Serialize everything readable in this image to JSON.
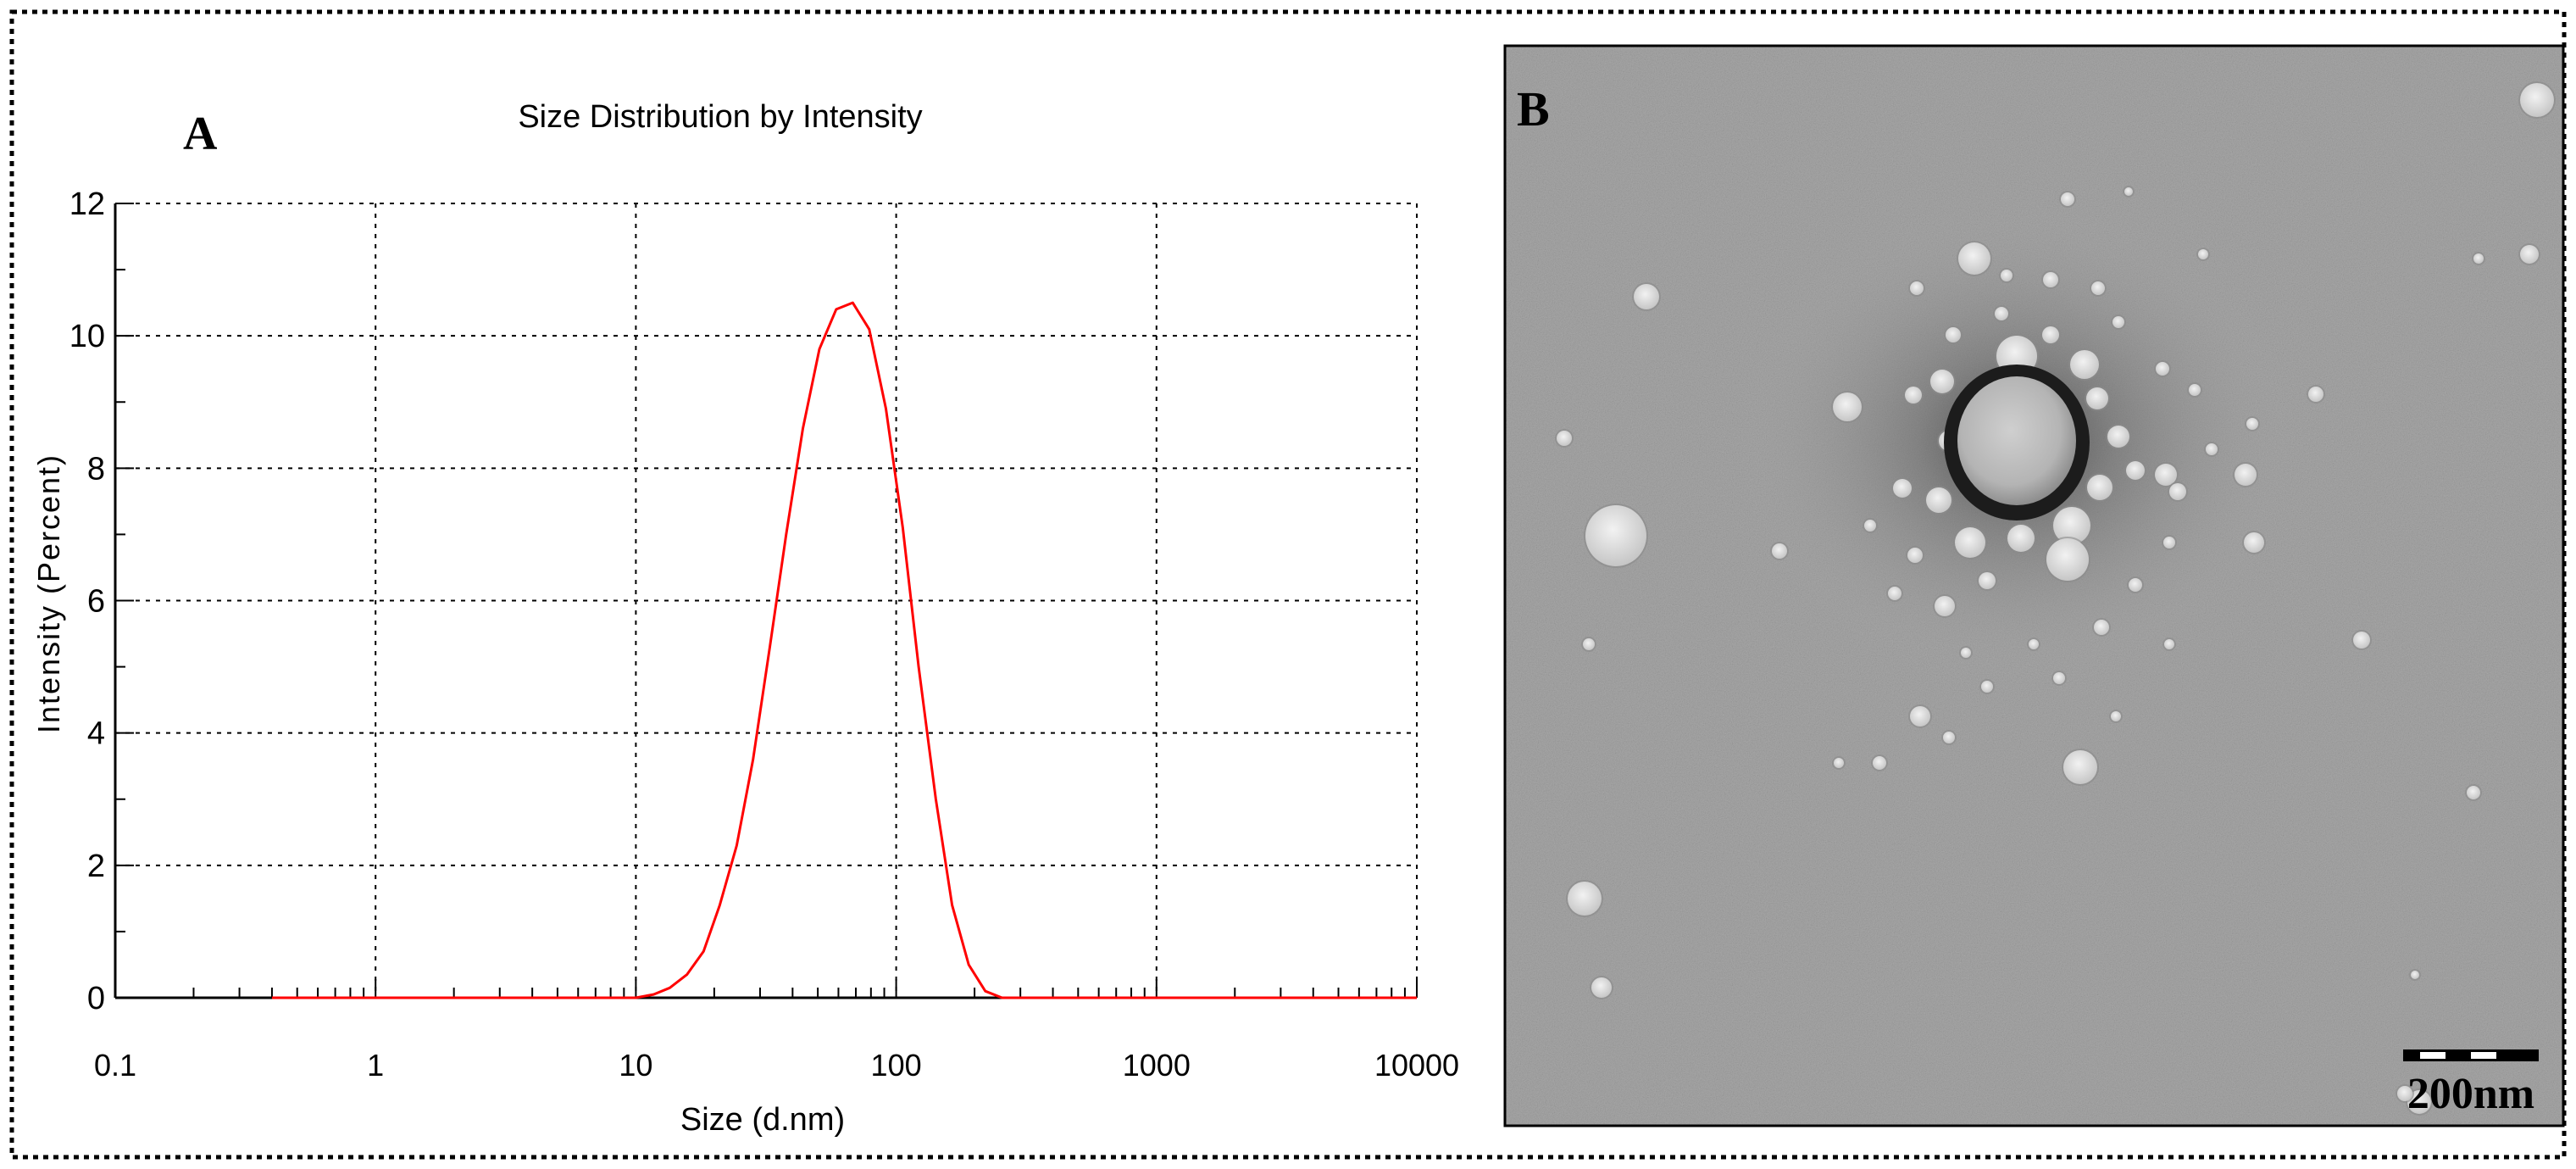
{
  "panel_a": {
    "label": "A"
  },
  "panel_b": {
    "label": "B",
    "scale_bar_label": "200nm",
    "image_description_icon": "tem-micrograph"
  },
  "chart_data": {
    "type": "line",
    "title": "Size Distribution by Intensity",
    "xlabel": "Size (d.nm)",
    "ylabel": "Intensity (Percent)",
    "x_scale": "log",
    "xlim": [
      0.1,
      10000
    ],
    "ylim": [
      0,
      12
    ],
    "x_ticks": [
      "0.1",
      "1",
      "10",
      "100",
      "1000",
      "10000"
    ],
    "y_ticks": [
      "0",
      "2",
      "4",
      "6",
      "8",
      "10",
      "12"
    ],
    "grid": true,
    "series": [
      {
        "name": "",
        "color": "#ff0000",
        "x": [
          0.4,
          1,
          5,
          10,
          11.7,
          13.5,
          15.7,
          18.2,
          21.0,
          24.4,
          28.2,
          32.7,
          37.8,
          43.8,
          50.7,
          58.8,
          68.1,
          78.8,
          91.3,
          106,
          122,
          142,
          164,
          190,
          220,
          255,
          300,
          1000,
          10000
        ],
        "y": [
          0,
          0,
          0,
          0,
          0.05,
          0.15,
          0.35,
          0.7,
          1.4,
          2.3,
          3.6,
          5.3,
          7.0,
          8.6,
          9.8,
          10.4,
          10.5,
          10.1,
          8.9,
          7.1,
          5.0,
          3.0,
          1.4,
          0.5,
          0.1,
          0,
          0,
          0,
          0
        ]
      }
    ]
  }
}
